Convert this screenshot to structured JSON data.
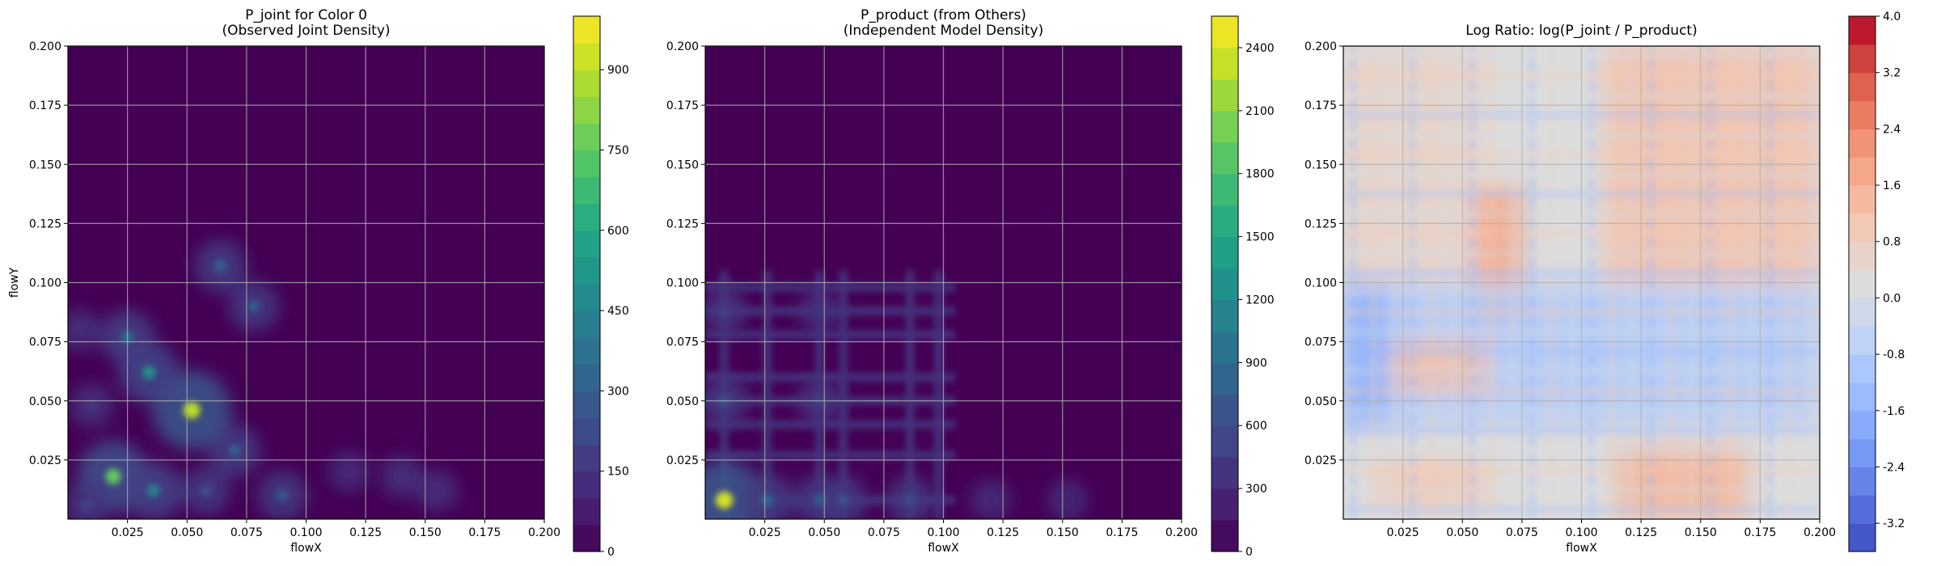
{
  "chart_data": [
    {
      "type": "heatmap",
      "title_lines": [
        "P_joint for Color 0",
        "(Observed Joint Density)"
      ],
      "xlabel": "flowX",
      "ylabel": "flowY",
      "xlim": [
        0.0,
        0.2
      ],
      "ylim": [
        0.0,
        0.2
      ],
      "xticks": [
        "0.025",
        "0.050",
        "0.075",
        "0.100",
        "0.125",
        "0.150",
        "0.175",
        "0.200"
      ],
      "yticks": [
        "0.025",
        "0.050",
        "0.075",
        "0.100",
        "0.125",
        "0.150",
        "0.175",
        "0.200"
      ],
      "grid": true,
      "colormap": "viridis",
      "colorbar": {
        "min": 0,
        "max": 1000,
        "ticks": [
          "0",
          "150",
          "300",
          "450",
          "600",
          "750",
          "900"
        ]
      },
      "background_color": "#440154",
      "peaks": [
        {
          "x": 0.052,
          "y": 0.046,
          "value": 900
        },
        {
          "x": 0.019,
          "y": 0.018,
          "value": 760
        },
        {
          "x": 0.034,
          "y": 0.062,
          "value": 520
        },
        {
          "x": 0.036,
          "y": 0.012,
          "value": 460
        },
        {
          "x": 0.025,
          "y": 0.077,
          "value": 380
        },
        {
          "x": 0.064,
          "y": 0.107,
          "value": 330
        },
        {
          "x": 0.078,
          "y": 0.09,
          "value": 310
        },
        {
          "x": 0.07,
          "y": 0.029,
          "value": 330
        },
        {
          "x": 0.09,
          "y": 0.01,
          "value": 300
        },
        {
          "x": 0.058,
          "y": 0.012,
          "value": 260
        },
        {
          "x": 0.008,
          "y": 0.006,
          "value": 220
        },
        {
          "x": 0.01,
          "y": 0.048,
          "value": 160
        },
        {
          "x": 0.14,
          "y": 0.018,
          "value": 120
        },
        {
          "x": 0.155,
          "y": 0.012,
          "value": 110
        },
        {
          "x": 0.118,
          "y": 0.02,
          "value": 90
        },
        {
          "x": 0.005,
          "y": 0.08,
          "value": 120
        }
      ]
    },
    {
      "type": "heatmap",
      "title_lines": [
        "P_product (from Others)",
        "(Independent Model Density)"
      ],
      "xlabel": "flowX",
      "ylabel": "",
      "xlim": [
        0.0,
        0.2
      ],
      "ylim": [
        0.0,
        0.2
      ],
      "xticks": [
        "0.025",
        "0.050",
        "0.075",
        "0.100",
        "0.125",
        "0.150",
        "0.175",
        "0.200"
      ],
      "yticks": [
        "0.025",
        "0.050",
        "0.075",
        "0.100",
        "0.125",
        "0.150",
        "0.175",
        "0.200"
      ],
      "grid": true,
      "colormap": "viridis",
      "colorbar": {
        "min": 0,
        "max": 2550,
        "ticks": [
          "0",
          "300",
          "600",
          "900",
          "1200",
          "1500",
          "1800",
          "2100",
          "2400"
        ]
      },
      "background_color": "#440154",
      "x_lines": [
        0.008,
        0.026,
        0.048,
        0.058,
        0.086,
        0.098
      ],
      "y_lines": [
        0.008,
        0.027,
        0.04,
        0.05,
        0.06,
        0.078,
        0.088,
        0.098
      ],
      "peaks": [
        {
          "x": 0.008,
          "y": 0.008,
          "value": 2400
        },
        {
          "x": 0.026,
          "y": 0.008,
          "value": 900
        },
        {
          "x": 0.048,
          "y": 0.008,
          "value": 800
        },
        {
          "x": 0.058,
          "y": 0.008,
          "value": 700
        },
        {
          "x": 0.086,
          "y": 0.008,
          "value": 650
        },
        {
          "x": 0.12,
          "y": 0.008,
          "value": 250
        },
        {
          "x": 0.152,
          "y": 0.008,
          "value": 200
        },
        {
          "x": 0.008,
          "y": 0.05,
          "value": 700
        },
        {
          "x": 0.048,
          "y": 0.05,
          "value": 500
        },
        {
          "x": 0.008,
          "y": 0.088,
          "value": 500
        },
        {
          "x": 0.048,
          "y": 0.088,
          "value": 350
        }
      ]
    },
    {
      "type": "heatmap",
      "title_lines": [
        "Log Ratio: log(P_joint / P_product)"
      ],
      "xlabel": "flowX",
      "ylabel": "",
      "xlim": [
        0.0,
        0.2
      ],
      "ylim": [
        0.0,
        0.2
      ],
      "xticks": [
        "0.025",
        "0.050",
        "0.075",
        "0.100",
        "0.125",
        "0.150",
        "0.175",
        "0.200"
      ],
      "yticks": [
        "0.025",
        "0.050",
        "0.075",
        "0.100",
        "0.125",
        "0.150",
        "0.175",
        "0.200"
      ],
      "grid": true,
      "colormap": "coolwarm",
      "colorbar": {
        "min": -3.6,
        "max": 4.0,
        "ticks": [
          "-3.2",
          "-2.4",
          "-1.6",
          "-0.8",
          "0.0",
          "0.8",
          "1.6",
          "2.4",
          "3.2",
          "4.0"
        ]
      },
      "background_color": "#dddddd",
      "regions": [
        {
          "x0": 0.11,
          "x1": 0.2,
          "y0": 0.1,
          "y1": 0.2,
          "value": 1.2
        },
        {
          "x0": 0.0,
          "x1": 0.06,
          "y0": 0.1,
          "y1": 0.2,
          "value": 0.6
        },
        {
          "x0": 0.055,
          "x1": 0.075,
          "y0": 0.08,
          "y1": 0.14,
          "value": 1.8
        },
        {
          "x0": 0.0,
          "x1": 0.2,
          "y0": 0.04,
          "y1": 0.1,
          "value": -0.9
        },
        {
          "x0": 0.02,
          "x1": 0.06,
          "y0": 0.055,
          "y1": 0.075,
          "value": 1.3
        },
        {
          "x0": 0.115,
          "x1": 0.17,
          "y0": 0.0,
          "y1": 0.03,
          "value": 1.5
        },
        {
          "x0": 0.015,
          "x1": 0.06,
          "y0": 0.005,
          "y1": 0.025,
          "value": 1.0
        },
        {
          "x0": 0.0,
          "x1": 0.02,
          "y0": 0.04,
          "y1": 0.1,
          "value": -1.6
        }
      ]
    }
  ]
}
